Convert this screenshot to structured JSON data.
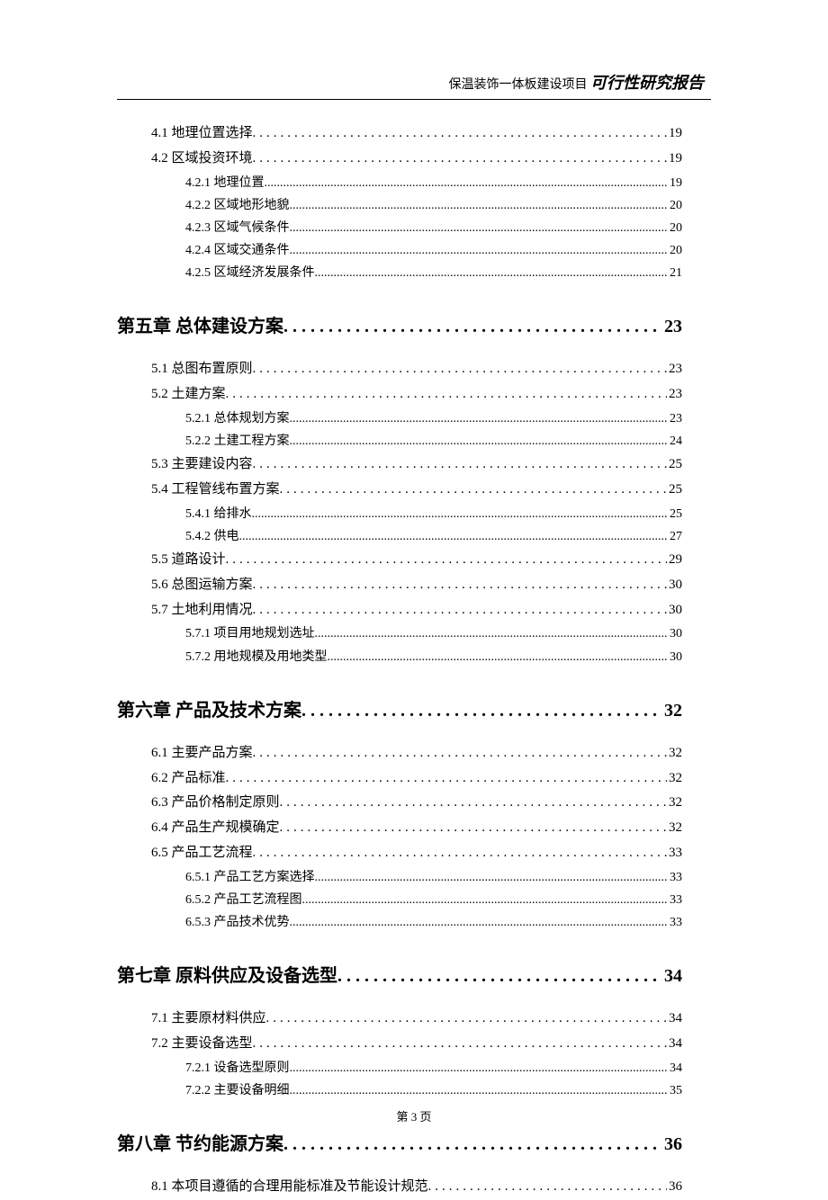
{
  "document": {
    "header_prefix": "保温装饰一体板建设项目",
    "header_title": "可行性研究报告",
    "page_footer": "第 3 页",
    "background_color": "#ffffff",
    "text_color": "#000000",
    "fonts": {
      "body": "SimSun",
      "chapter": "KaiTi",
      "header_italic": "KaiTi"
    },
    "font_sizes_pt": {
      "header_prefix": 10.5,
      "header_title": 14,
      "level1": 15,
      "level2": 11,
      "level3": 10.5,
      "footer": 10
    }
  },
  "toc": [
    {
      "level": 2,
      "label": "4.1 地理位置选择",
      "page": "19"
    },
    {
      "level": 2,
      "label": "4.2 区域投资环境",
      "page": "19"
    },
    {
      "level": 3,
      "label": "4.2.1 地理位置",
      "page": "19"
    },
    {
      "level": 3,
      "label": "4.2.2 区域地形地貌",
      "page": "20"
    },
    {
      "level": 3,
      "label": "4.2.3 区域气候条件",
      "page": "20"
    },
    {
      "level": 3,
      "label": "4.2.4 区域交通条件",
      "page": "20"
    },
    {
      "level": 3,
      "label": "4.2.5 区域经济发展条件",
      "page": "21"
    },
    {
      "level": 1,
      "label": "第五章 总体建设方案",
      "page": "23"
    },
    {
      "level": 2,
      "label": "5.1 总图布置原则",
      "page": "23"
    },
    {
      "level": 2,
      "label": "5.2 土建方案",
      "page": "23"
    },
    {
      "level": 3,
      "label": "5.2.1 总体规划方案",
      "page": "23"
    },
    {
      "level": 3,
      "label": "5.2.2 土建工程方案",
      "page": "24"
    },
    {
      "level": 2,
      "label": "5.3 主要建设内容",
      "page": "25"
    },
    {
      "level": 2,
      "label": "5.4 工程管线布置方案",
      "page": "25"
    },
    {
      "level": 3,
      "label": "5.4.1 给排水",
      "page": "25"
    },
    {
      "level": 3,
      "label": "5.4.2 供电",
      "page": "27"
    },
    {
      "level": 2,
      "label": "5.5 道路设计",
      "page": "29"
    },
    {
      "level": 2,
      "label": "5.6 总图运输方案",
      "page": "30"
    },
    {
      "level": 2,
      "label": "5.7 土地利用情况",
      "page": "30"
    },
    {
      "level": 3,
      "label": "5.7.1 项目用地规划选址",
      "page": "30"
    },
    {
      "level": 3,
      "label": "5.7.2 用地规模及用地类型",
      "page": "30"
    },
    {
      "level": 1,
      "label": "第六章 产品及技术方案",
      "page": "32"
    },
    {
      "level": 2,
      "label": "6.1 主要产品方案",
      "page": "32"
    },
    {
      "level": 2,
      "label": "6.2 产品标准",
      "page": "32"
    },
    {
      "level": 2,
      "label": "6.3 产品价格制定原则",
      "page": "32"
    },
    {
      "level": 2,
      "label": "6.4 产品生产规模确定",
      "page": "32"
    },
    {
      "level": 2,
      "label": "6.5 产品工艺流程",
      "page": "33"
    },
    {
      "level": 3,
      "label": "6.5.1 产品工艺方案选择",
      "page": "33"
    },
    {
      "level": 3,
      "label": "6.5.2 产品工艺流程图",
      "page": "33"
    },
    {
      "level": 3,
      "label": "6.5.3 产品技术优势",
      "page": "33"
    },
    {
      "level": 1,
      "label": "第七章 原料供应及设备选型",
      "page": "34"
    },
    {
      "level": 2,
      "label": "7.1 主要原材料供应",
      "page": "34"
    },
    {
      "level": 2,
      "label": "7.2 主要设备选型",
      "page": "34"
    },
    {
      "level": 3,
      "label": "7.2.1 设备选型原则",
      "page": "34"
    },
    {
      "level": 3,
      "label": "7.2.2 主要设备明细",
      "page": "35"
    },
    {
      "level": 1,
      "label": "第八章 节约能源方案",
      "page": "36"
    },
    {
      "level": 2,
      "label": "8.1 本项目遵循的合理用能标准及节能设计规范",
      "page": "36"
    }
  ]
}
